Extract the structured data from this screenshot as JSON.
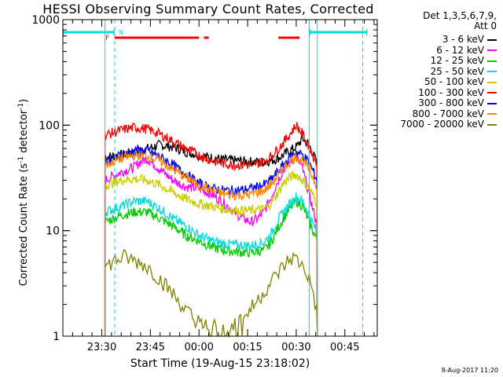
{
  "chart_data": {
    "type": "line",
    "title": "HESSI Observing Summary Count Rates, Corrected",
    "xlabel": "Start Time (19-Aug-15 23:18:02)",
    "ylabel_parts": [
      "Corrected Count Rate (s",
      "-1",
      " detector",
      "-1",
      ")"
    ],
    "yscale": "log",
    "ylim": [
      1,
      1000
    ],
    "yticks": [
      {
        "v": 1,
        "label": "1"
      },
      {
        "v": 10,
        "label": "10"
      },
      {
        "v": 100,
        "label": "100"
      },
      {
        "v": 1000,
        "label": "1000"
      }
    ],
    "x_units": "minutes after 23:18:02",
    "xlim": [
      0,
      97
    ],
    "xticks": [
      {
        "m": 12,
        "label": "23:30"
      },
      {
        "m": 27,
        "label": "23:45"
      },
      {
        "m": 42,
        "label": "00:00"
      },
      {
        "m": 57,
        "label": "00:15"
      },
      {
        "m": 72,
        "label": "00:30"
      },
      {
        "m": 87,
        "label": "00:45"
      }
    ],
    "legend_header": [
      "Det 1,3,5,6,7,9,",
      "Att 0"
    ],
    "flag_labels": {
      "F": "F",
      "N": "N"
    },
    "series": [
      {
        "name": "3 - 6 keV",
        "color": "#000000",
        "x": [
          13,
          18,
          22,
          26,
          30,
          34,
          38,
          42,
          46,
          50,
          54,
          58,
          62,
          64,
          66,
          68,
          70,
          72,
          74,
          76,
          78.5
        ],
        "y": [
          50,
          52,
          55,
          60,
          65,
          62,
          56,
          52,
          49,
          47,
          46,
          45,
          45,
          46,
          48,
          52,
          57,
          62,
          75,
          65,
          43
        ]
      },
      {
        "name": "6 - 12 keV",
        "color": "#ff00ff",
        "x": [
          13,
          18,
          22,
          24,
          26,
          30,
          34,
          38,
          42,
          46,
          50,
          54,
          58,
          60,
          62,
          64,
          66,
          68,
          70,
          72,
          74,
          76,
          78.5
        ],
        "y": [
          30,
          36,
          40,
          45,
          48,
          38,
          30,
          26,
          25,
          22,
          18,
          14,
          12,
          13,
          15,
          20,
          28,
          38,
          45,
          50,
          38,
          22,
          11
        ]
      },
      {
        "name": "12 - 25 keV",
        "color": "#00cc00",
        "x": [
          13,
          18,
          22,
          26,
          30,
          34,
          38,
          42,
          46,
          50,
          54,
          58,
          62,
          64,
          66,
          68,
          70,
          72,
          74,
          76,
          78.5
        ],
        "y": [
          12,
          14,
          15,
          15,
          13,
          11,
          9,
          8,
          7,
          6.5,
          6.3,
          6.2,
          6.5,
          7.5,
          10,
          13,
          16,
          19,
          17,
          12,
          8
        ]
      },
      {
        "name": "25 - 50 keV",
        "color": "#00dddd",
        "x": [
          13,
          18,
          22,
          26,
          30,
          34,
          38,
          42,
          46,
          50,
          54,
          58,
          62,
          64,
          66,
          68,
          70,
          72,
          74,
          76,
          78.5
        ],
        "y": [
          15,
          17,
          19,
          19,
          16,
          13,
          11,
          9,
          8,
          7.5,
          7.3,
          7.2,
          7.8,
          9,
          12,
          15,
          18,
          21,
          19,
          14,
          9.5
        ]
      },
      {
        "name": "50 - 100 keV",
        "color": "#cccc00",
        "x": [
          13,
          18,
          22,
          26,
          30,
          34,
          38,
          42,
          46,
          50,
          54,
          58,
          62,
          64,
          66,
          68,
          70,
          72,
          74,
          76,
          78.5
        ],
        "y": [
          27,
          30,
          31,
          30,
          27,
          23,
          20,
          18,
          17,
          16,
          15.5,
          15.5,
          16,
          18,
          22,
          28,
          32,
          34,
          30,
          25,
          18
        ]
      },
      {
        "name": "100 - 300 keV",
        "color": "#ff0000",
        "x": [
          13,
          18,
          22,
          26,
          30,
          34,
          38,
          42,
          46,
          50,
          54,
          58,
          62,
          64,
          66,
          68,
          70,
          72,
          74,
          76,
          78.5
        ],
        "y": [
          80,
          90,
          95,
          92,
          82,
          70,
          60,
          52,
          46,
          43,
          42,
          42,
          45,
          50,
          58,
          68,
          82,
          100,
          82,
          62,
          42
        ]
      },
      {
        "name": "300 - 800 keV",
        "color": "#0000ff",
        "x": [
          13,
          18,
          22,
          26,
          30,
          34,
          38,
          42,
          46,
          50,
          54,
          58,
          62,
          64,
          66,
          68,
          70,
          72,
          74,
          76,
          78.5
        ],
        "y": [
          45,
          52,
          58,
          57,
          50,
          42,
          34,
          28,
          25,
          24,
          24,
          25,
          27,
          30,
          35,
          42,
          50,
          56,
          52,
          44,
          30
        ]
      },
      {
        "name": "800 - 7000 keV",
        "color": "#ff8800",
        "x": [
          13,
          18,
          22,
          26,
          30,
          34,
          38,
          42,
          46,
          50,
          54,
          58,
          62,
          64,
          66,
          68,
          70,
          72,
          74,
          76,
          78.5
        ],
        "y": [
          42,
          48,
          52,
          51,
          46,
          38,
          32,
          27,
          24,
          22,
          21.5,
          22,
          24,
          27,
          32,
          38,
          45,
          50,
          46,
          38,
          26
        ]
      },
      {
        "name": "7000 - 20000 keV",
        "color": "#808000",
        "x": [
          13,
          16,
          19,
          22,
          25,
          28,
          31,
          34,
          37,
          40,
          43,
          46,
          49,
          52,
          55,
          58,
          61,
          63,
          65,
          67,
          69,
          71,
          73,
          75,
          77,
          78.5
        ],
        "y": [
          4.5,
          5.2,
          5.6,
          5.2,
          4.8,
          4.0,
          3.2,
          2.5,
          1.9,
          1.5,
          1.3,
          1.2,
          1.2,
          1.3,
          1.5,
          1.8,
          2.4,
          2.9,
          3.5,
          4.2,
          5.0,
          5.6,
          5.0,
          4.2,
          2.8,
          1.6
        ]
      }
    ],
    "flag_bars": {
      "saa_cyan": [
        [
          -2,
          16
        ],
        [
          76,
          94
        ]
      ],
      "flare_red": [
        [
          16,
          42
        ],
        [
          43.5,
          45
        ],
        [
          66.5,
          73
        ]
      ]
    },
    "vlines_solid": [
      13,
      76,
      78.5
    ],
    "vlines_dashed": [
      16,
      76,
      92.5
    ],
    "timestamp": "8-Aug-2017 11:20"
  }
}
